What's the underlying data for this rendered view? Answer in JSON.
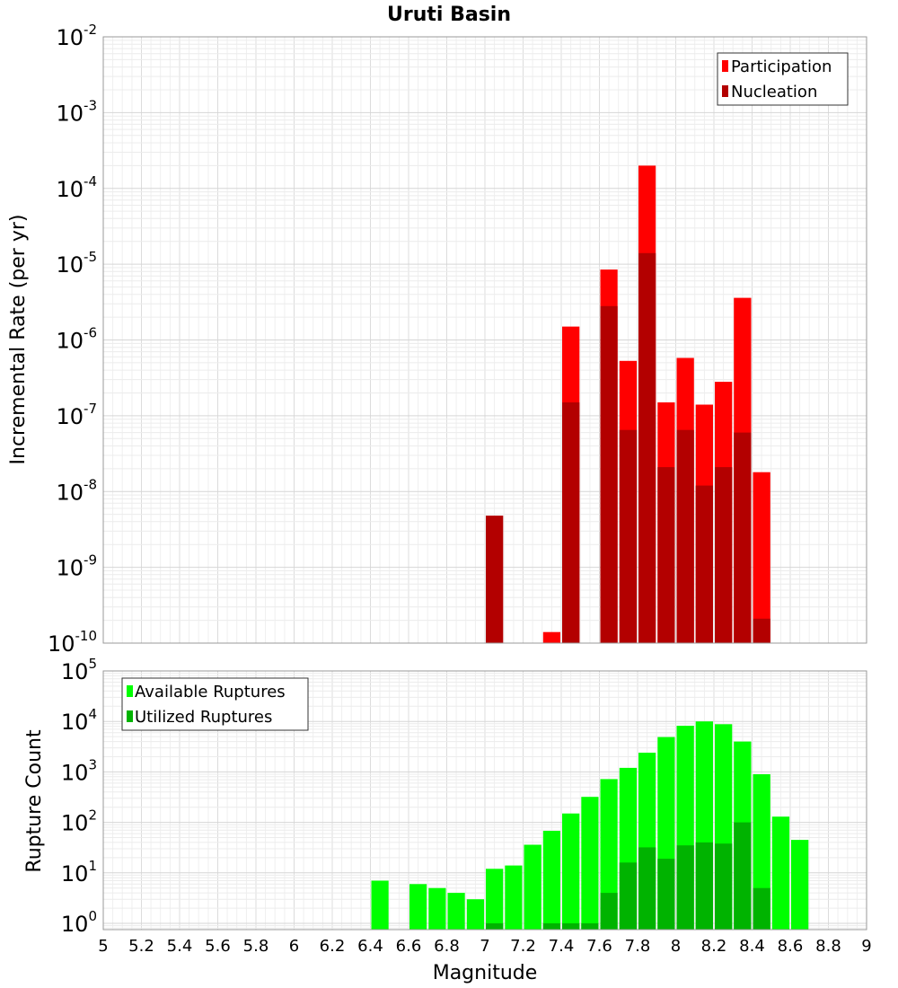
{
  "chart_data": [
    {
      "type": "bar",
      "title": "Uruti Basin",
      "xlabel": "",
      "ylabel": "Incremental Rate (per yr)",
      "yscale": "log",
      "ylim": [
        1e-10,
        0.01
      ],
      "xlim": [
        5,
        9
      ],
      "grid": true,
      "legend_position": "top-right",
      "bin_width": 0.1,
      "series": [
        {
          "name": "Participation",
          "color": "#ff0000",
          "x": [
            7.35,
            7.45,
            7.65,
            7.75,
            7.85,
            7.95,
            8.05,
            8.15,
            8.25,
            8.35,
            8.45
          ],
          "values": [
            1.4e-10,
            1.5e-06,
            8.5e-06,
            5.3e-07,
            0.0002,
            1.5e-07,
            5.8e-07,
            1.4e-07,
            2.8e-07,
            3.6e-06,
            1.8e-08
          ]
        },
        {
          "name": "Nucleation",
          "color": "#b30000",
          "x": [
            7.05,
            7.45,
            7.65,
            7.75,
            7.85,
            7.95,
            8.05,
            8.15,
            8.25,
            8.35,
            8.45
          ],
          "values": [
            4.8e-09,
            1.5e-07,
            2.8e-06,
            6.5e-08,
            1.4e-05,
            2.1e-08,
            6.5e-08,
            1.2e-08,
            2.1e-08,
            6e-08,
            2.1e-10
          ]
        }
      ]
    },
    {
      "type": "bar",
      "title": "",
      "xlabel": "Magnitude",
      "ylabel": "Rupture Count",
      "yscale": "log",
      "ylim": [
        0.75,
        100000.0
      ],
      "xlim": [
        5,
        9
      ],
      "grid": true,
      "legend_position": "top-left",
      "bin_width": 0.1,
      "x_ticks": [
        "5",
        "5.2",
        "5.4",
        "5.6",
        "5.8",
        "6",
        "6.2",
        "6.4",
        "6.6",
        "6.8",
        "7",
        "7.2",
        "7.4",
        "7.6",
        "7.8",
        "8",
        "8.2",
        "8.4",
        "8.6",
        "8.8",
        "9"
      ],
      "series": [
        {
          "name": "Available Ruptures",
          "color": "#00ff00",
          "x": [
            6.45,
            6.65,
            6.75,
            6.85,
            6.95,
            7.05,
            7.15,
            7.25,
            7.35,
            7.45,
            7.55,
            7.65,
            7.75,
            7.85,
            7.95,
            8.05,
            8.15,
            8.25,
            8.35,
            8.45,
            8.55,
            8.65
          ],
          "values": [
            7,
            6,
            5,
            4,
            3,
            12,
            14,
            36,
            68,
            150,
            320,
            720,
            1200,
            2400,
            4900,
            8200,
            10000,
            8800,
            4000,
            900,
            130,
            45
          ]
        },
        {
          "name": "Utilized Ruptures",
          "color": "#00b300",
          "x": [
            7.05,
            7.35,
            7.45,
            7.55,
            7.65,
            7.75,
            7.85,
            7.95,
            8.05,
            8.15,
            8.25,
            8.35,
            8.45
          ],
          "values": [
            1,
            1,
            1,
            1,
            4,
            16,
            32,
            19,
            35,
            40,
            38,
            100,
            5
          ]
        }
      ]
    }
  ]
}
